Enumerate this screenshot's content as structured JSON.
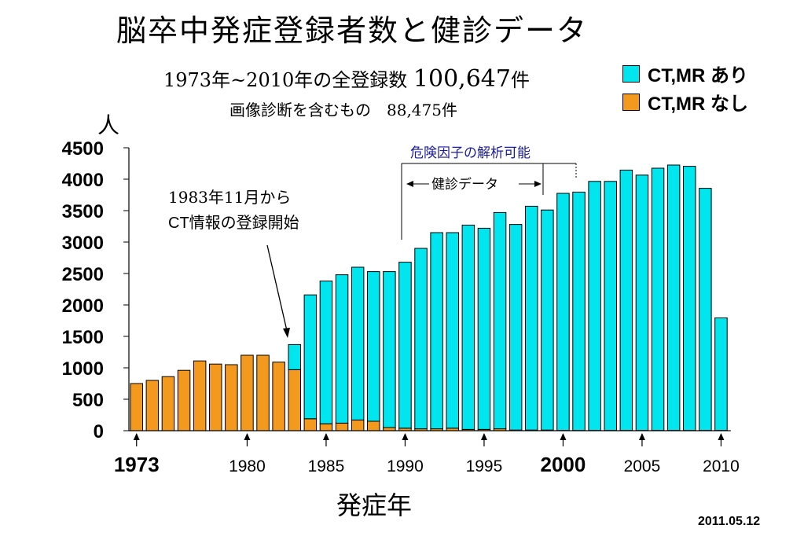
{
  "title": "脳卒中発症登録者数と健診データ",
  "subtitle": {
    "line1_prefix": "1973年~2010年の全登録数",
    "line1_total": "100,647",
    "line1_unit": "件",
    "line2": "画像診断を含むもの　88,475件"
  },
  "legend": [
    {
      "label": "CT,MR あり",
      "color": "#00E5EE"
    },
    {
      "label": "CT,MR なし",
      "color": "#F39A1E"
    }
  ],
  "annotations": {
    "ct_start_line1": "1983年11月から",
    "ct_start_line2": "CT情報の登録開始",
    "risk_factor": "危険因子の解析可能",
    "health_check": "健診データ"
  },
  "date": "2011.05.12",
  "chart_data": {
    "type": "bar",
    "stacked": true,
    "x": [
      1973,
      1974,
      1975,
      1976,
      1977,
      1978,
      1979,
      1980,
      1981,
      1982,
      1983,
      1984,
      1985,
      1986,
      1987,
      1988,
      1989,
      1990,
      1991,
      1992,
      1993,
      1994,
      1995,
      1996,
      1997,
      1998,
      1999,
      2000,
      2001,
      2002,
      2003,
      2004,
      2005,
      2006,
      2007,
      2008,
      2009,
      2010
    ],
    "series": [
      {
        "name": "CT,MR なし",
        "color": "#F39A1E",
        "values": [
          750,
          800,
          860,
          960,
          1110,
          1060,
          1050,
          1200,
          1200,
          1090,
          970,
          190,
          110,
          120,
          170,
          150,
          50,
          40,
          30,
          30,
          40,
          20,
          20,
          30,
          10,
          10,
          10,
          5,
          5,
          5,
          5,
          5,
          5,
          5,
          5,
          5,
          5,
          5
        ]
      },
      {
        "name": "CT,MR あり",
        "color": "#00E5EE",
        "values": [
          0,
          0,
          0,
          0,
          0,
          0,
          0,
          0,
          0,
          0,
          400,
          1970,
          2270,
          2360,
          2430,
          2380,
          2480,
          2640,
          2870,
          3120,
          3110,
          3250,
          3200,
          3440,
          3270,
          3560,
          3500,
          3770,
          3790,
          3960,
          3960,
          4140,
          4060,
          4170,
          4220,
          4200,
          3850,
          1790
        ]
      }
    ],
    "ylabel": "人",
    "xlabel": "発症年",
    "ylim": [
      0,
      4500
    ],
    "yticks": [
      0,
      500,
      1000,
      1500,
      2000,
      2500,
      3000,
      3500,
      4000,
      4500
    ],
    "xtick_labels": [
      {
        "year": 1973,
        "label": "1973",
        "emphasis": true
      },
      {
        "year": 1980,
        "label": "1980",
        "emphasis": false
      },
      {
        "year": 1985,
        "label": "1985",
        "emphasis": false
      },
      {
        "year": 1990,
        "label": "1990",
        "emphasis": false
      },
      {
        "year": 1995,
        "label": "1995",
        "emphasis": false
      },
      {
        "year": 2000,
        "label": "2000",
        "emphasis": true
      },
      {
        "year": 2005,
        "label": "2005",
        "emphasis": false
      },
      {
        "year": 2010,
        "label": "2010",
        "emphasis": false
      }
    ],
    "grid": false,
    "legend_position": "top-right"
  }
}
